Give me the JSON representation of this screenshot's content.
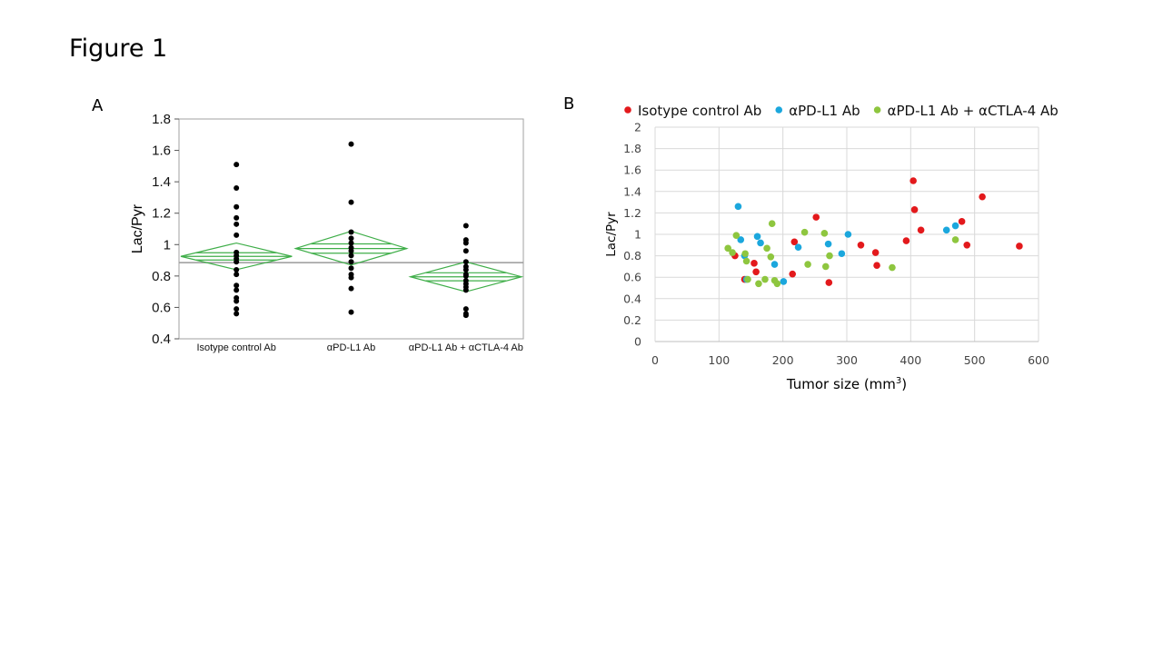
{
  "figure_title": "Figure 1",
  "panel_a_label": "A",
  "panel_b_label": "B",
  "chart_data": [
    {
      "type": "scatter",
      "subtype": "strip plot with means diamonds",
      "title": "",
      "xlabel": "",
      "ylabel": "Lac/Pyr",
      "ylim": [
        0.4,
        1.8
      ],
      "yticks": [
        0.4,
        0.6,
        0.8,
        1,
        1.2,
        1.4,
        1.6,
        1.8
      ],
      "categories": [
        "Isotype control Ab",
        "αPD-L1 Ab",
        "αPD-L1 Ab + αCTLA-4 Ab"
      ],
      "grand_mean": 0.885,
      "series": [
        {
          "name": "Isotype control Ab",
          "values": [
            1.51,
            1.36,
            1.24,
            1.17,
            1.13,
            1.06,
            0.95,
            0.93,
            0.91,
            0.89,
            0.84,
            0.81,
            0.74,
            0.71,
            0.66,
            0.64,
            0.59,
            0.56
          ],
          "mean": 0.925,
          "ci_low": 0.84,
          "ci_high": 1.01
        },
        {
          "name": "αPD-L1 Ab",
          "values": [
            1.64,
            1.27,
            1.08,
            1.04,
            1.01,
            0.98,
            0.96,
            0.93,
            0.89,
            0.85,
            0.81,
            0.79,
            0.72,
            0.57
          ],
          "mean": 0.975,
          "ci_low": 0.87,
          "ci_high": 1.085
        },
        {
          "name": "αPD-L1 Ab + αCTLA-4 Ab",
          "values": [
            1.12,
            1.03,
            1.01,
            0.96,
            0.89,
            0.86,
            0.84,
            0.81,
            0.8,
            0.77,
            0.75,
            0.73,
            0.71,
            0.59,
            0.56,
            0.55
          ],
          "mean": 0.795,
          "ci_low": 0.7,
          "ci_high": 0.89
        }
      ],
      "grid": false
    },
    {
      "type": "scatter",
      "title": "",
      "xlabel": "Tumor size (mm",
      "xlabel_superscript": "3",
      "xlabel_suffix": ")",
      "ylabel": "Lac/Pyr",
      "xlim": [
        0,
        600
      ],
      "ylim": [
        0,
        2
      ],
      "xticks": [
        0,
        100,
        200,
        300,
        400,
        500,
        600
      ],
      "yticks": [
        0,
        0.2,
        0.4,
        0.6,
        0.8,
        1,
        1.2,
        1.4,
        1.6,
        1.8,
        2
      ],
      "grid": true,
      "legend_position": "top",
      "series": [
        {
          "name": "Isotype control Ab",
          "color": "#e3191c",
          "points": [
            [
              125,
              0.8
            ],
            [
              140,
              0.58
            ],
            [
              155,
              0.73
            ],
            [
              158,
              0.65
            ],
            [
              215,
              0.63
            ],
            [
              218,
              0.93
            ],
            [
              252,
              1.16
            ],
            [
              272,
              0.55
            ],
            [
              322,
              0.9
            ],
            [
              345,
              0.83
            ],
            [
              347,
              0.71
            ],
            [
              393,
              0.94
            ],
            [
              404,
              1.5
            ],
            [
              406,
              1.23
            ],
            [
              416,
              1.04
            ],
            [
              480,
              1.12
            ],
            [
              488,
              0.9
            ],
            [
              512,
              1.35
            ],
            [
              570,
              0.89
            ]
          ]
        },
        {
          "name": "αPD-L1 Ab",
          "color": "#1ba7dd",
          "points": [
            [
              130,
              1.26
            ],
            [
              134,
              0.95
            ],
            [
              140,
              0.8
            ],
            [
              143,
              0.58
            ],
            [
              160,
              0.98
            ],
            [
              165,
              0.92
            ],
            [
              187,
              0.72
            ],
            [
              201,
              0.56
            ],
            [
              224,
              0.88
            ],
            [
              271,
              0.91
            ],
            [
              292,
              0.82
            ],
            [
              302,
              1.0
            ],
            [
              456,
              1.04
            ],
            [
              470,
              1.08
            ]
          ]
        },
        {
          "name": "αPD-L1 Ab + αCTLA-4 Ab",
          "color": "#8ec63f",
          "points": [
            [
              114,
              0.87
            ],
            [
              121,
              0.83
            ],
            [
              127,
              0.99
            ],
            [
              141,
              0.82
            ],
            [
              143,
              0.75
            ],
            [
              145,
              0.58
            ],
            [
              162,
              0.54
            ],
            [
              172,
              0.58
            ],
            [
              175,
              0.87
            ],
            [
              181,
              0.79
            ],
            [
              183,
              1.1
            ],
            [
              187,
              0.57
            ],
            [
              191,
              0.54
            ],
            [
              234,
              1.02
            ],
            [
              239,
              0.72
            ],
            [
              265,
              1.01
            ],
            [
              267,
              0.7
            ],
            [
              273,
              0.8
            ],
            [
              371,
              0.69
            ],
            [
              470,
              0.95
            ]
          ]
        }
      ]
    }
  ]
}
